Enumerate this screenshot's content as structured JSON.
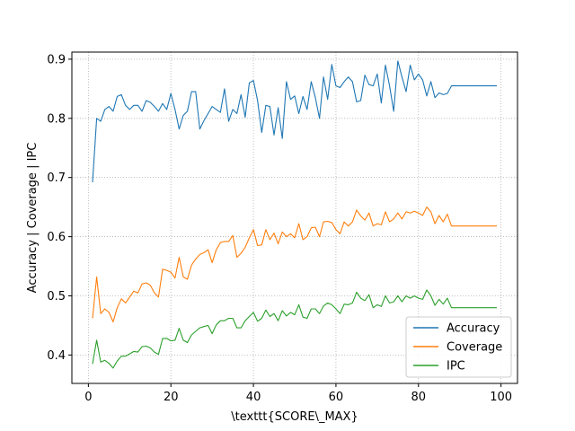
{
  "chart_data": {
    "type": "line",
    "xlabel": "\\texttt{SCORE\\_MAX}",
    "ylabel": "Accuracy | Coverage | IPC",
    "xlim": [
      -4,
      104
    ],
    "ylim": [
      0.352,
      0.912
    ],
    "xticks": [
      0,
      20,
      40,
      60,
      80,
      100
    ],
    "yticks": [
      0.4,
      0.5,
      0.6,
      0.7,
      0.8,
      0.9
    ],
    "grid": true,
    "legend_position": "lower-right",
    "colors": {
      "Accuracy": "#1f77b4",
      "Coverage": "#ff7f0e",
      "IPC": "#2ca02c"
    },
    "x": [
      1,
      2,
      3,
      4,
      5,
      6,
      7,
      8,
      9,
      10,
      11,
      12,
      13,
      14,
      15,
      16,
      17,
      18,
      19,
      20,
      21,
      22,
      23,
      24,
      25,
      26,
      27,
      28,
      29,
      30,
      31,
      32,
      33,
      34,
      35,
      36,
      37,
      38,
      39,
      40,
      41,
      42,
      43,
      44,
      45,
      46,
      47,
      48,
      49,
      50,
      51,
      52,
      53,
      54,
      55,
      56,
      57,
      58,
      59,
      60,
      61,
      62,
      63,
      64,
      65,
      66,
      67,
      68,
      69,
      70,
      71,
      72,
      73,
      74,
      75,
      76,
      77,
      78,
      79,
      80,
      81,
      82,
      83,
      84,
      85,
      86,
      87,
      88,
      89,
      90,
      91,
      92,
      93,
      94,
      95,
      96,
      97,
      98,
      99
    ],
    "series": [
      {
        "name": "Accuracy",
        "values": [
          0.692,
          0.8,
          0.795,
          0.815,
          0.82,
          0.812,
          0.837,
          0.84,
          0.822,
          0.815,
          0.822,
          0.822,
          0.812,
          0.83,
          0.827,
          0.82,
          0.812,
          0.825,
          0.815,
          0.842,
          0.815,
          0.782,
          0.805,
          0.812,
          0.845,
          0.845,
          0.782,
          0.796,
          0.808,
          0.82,
          0.815,
          0.81,
          0.85,
          0.795,
          0.815,
          0.808,
          0.84,
          0.802,
          0.86,
          0.864,
          0.83,
          0.776,
          0.822,
          0.82,
          0.772,
          0.818,
          0.766,
          0.862,
          0.832,
          0.838,
          0.808,
          0.837,
          0.815,
          0.862,
          0.835,
          0.8,
          0.87,
          0.832,
          0.891,
          0.855,
          0.852,
          0.862,
          0.87,
          0.862,
          0.828,
          0.83,
          0.873,
          0.857,
          0.855,
          0.875,
          0.826,
          0.89,
          0.855,
          0.812,
          0.897,
          0.87,
          0.845,
          0.89,
          0.865,
          0.875,
          0.865,
          0.838,
          0.862,
          0.835,
          0.843,
          0.84,
          0.842,
          0.855,
          0.855,
          0.855,
          0.855,
          0.855,
          0.855,
          0.855,
          0.855,
          0.855,
          0.855,
          0.855,
          0.855
        ]
      },
      {
        "name": "Coverage",
        "values": [
          0.462,
          0.532,
          0.47,
          0.478,
          0.472,
          0.456,
          0.48,
          0.495,
          0.488,
          0.498,
          0.508,
          0.505,
          0.52,
          0.522,
          0.518,
          0.505,
          0.498,
          0.545,
          0.543,
          0.54,
          0.53,
          0.565,
          0.532,
          0.528,
          0.552,
          0.562,
          0.57,
          0.573,
          0.578,
          0.556,
          0.578,
          0.59,
          0.592,
          0.592,
          0.602,
          0.565,
          0.572,
          0.582,
          0.598,
          0.612,
          0.585,
          0.586,
          0.612,
          0.595,
          0.606,
          0.588,
          0.608,
          0.6,
          0.605,
          0.598,
          0.622,
          0.595,
          0.6,
          0.615,
          0.616,
          0.6,
          0.625,
          0.626,
          0.624,
          0.612,
          0.605,
          0.625,
          0.618,
          0.625,
          0.645,
          0.635,
          0.628,
          0.64,
          0.618,
          0.622,
          0.62,
          0.642,
          0.625,
          0.63,
          0.64,
          0.63,
          0.642,
          0.64,
          0.643,
          0.64,
          0.636,
          0.65,
          0.642,
          0.622,
          0.636,
          0.625,
          0.638,
          0.618,
          0.618,
          0.618,
          0.618,
          0.618,
          0.618,
          0.618,
          0.618,
          0.618,
          0.618,
          0.618,
          0.618
        ]
      },
      {
        "name": "IPC",
        "values": [
          0.385,
          0.425,
          0.388,
          0.391,
          0.386,
          0.378,
          0.39,
          0.398,
          0.398,
          0.402,
          0.406,
          0.405,
          0.414,
          0.415,
          0.412,
          0.405,
          0.401,
          0.428,
          0.428,
          0.424,
          0.425,
          0.445,
          0.425,
          0.421,
          0.434,
          0.44,
          0.446,
          0.448,
          0.45,
          0.436,
          0.451,
          0.458,
          0.458,
          0.462,
          0.462,
          0.446,
          0.446,
          0.458,
          0.465,
          0.472,
          0.457,
          0.462,
          0.476,
          0.465,
          0.47,
          0.458,
          0.475,
          0.466,
          0.472,
          0.468,
          0.485,
          0.464,
          0.462,
          0.478,
          0.478,
          0.47,
          0.483,
          0.488,
          0.485,
          0.478,
          0.47,
          0.486,
          0.485,
          0.488,
          0.506,
          0.496,
          0.492,
          0.502,
          0.48,
          0.485,
          0.482,
          0.5,
          0.488,
          0.49,
          0.5,
          0.49,
          0.5,
          0.496,
          0.5,
          0.496,
          0.494,
          0.51,
          0.5,
          0.484,
          0.494,
          0.486,
          0.496,
          0.48,
          0.48,
          0.48,
          0.48,
          0.48,
          0.48,
          0.48,
          0.48,
          0.48,
          0.48,
          0.48,
          0.48
        ]
      }
    ]
  }
}
